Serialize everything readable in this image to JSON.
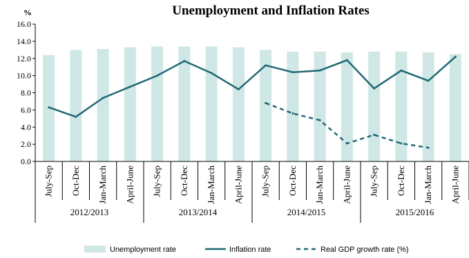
{
  "chart_data": {
    "type": "bar",
    "title": "Unemployment and Inflation Rates",
    "ylabel": "%",
    "ylim": [
      0,
      16
    ],
    "yticks": [
      "0.0",
      "2.0",
      "4.0",
      "6.0",
      "8.0",
      "10.0",
      "12.0",
      "14.0",
      "16.0"
    ],
    "categories": [
      "July-Sep",
      "Oct-Dec",
      "Jan-March",
      "April-June",
      "July-Sep",
      "Oct-Dec",
      "Jan-March",
      "April-June",
      "July-Sep",
      "Oct-Dec",
      "Jan-March",
      "April-June",
      "July-Sep",
      "Oct-Dec",
      "Jan-March",
      "April-June"
    ],
    "groups": [
      {
        "label": "2012/2013",
        "span": 4
      },
      {
        "label": "2013/2014",
        "span": 4
      },
      {
        "label": "2014/2015",
        "span": 4
      },
      {
        "label": "2015/2016",
        "span": 4
      }
    ],
    "series": [
      {
        "name": "Unemployment rate",
        "kind": "bar",
        "color": "#cfe8e6",
        "values": [
          12.4,
          13.0,
          13.1,
          13.3,
          13.4,
          13.4,
          13.4,
          13.3,
          13.0,
          12.8,
          12.8,
          12.7,
          12.8,
          12.8,
          12.7,
          12.5
        ]
      },
      {
        "name": "Inflation rate",
        "kind": "line",
        "color": "#1f6874",
        "values": [
          6.3,
          5.2,
          7.4,
          8.7,
          10.0,
          11.7,
          10.3,
          8.4,
          11.2,
          10.4,
          10.6,
          11.8,
          8.5,
          10.6,
          9.4,
          12.2
        ]
      },
      {
        "name": "Real GDP growth rate (%)",
        "kind": "dashed-line",
        "color": "#1f6874",
        "values": [
          null,
          null,
          null,
          null,
          null,
          null,
          null,
          null,
          6.8,
          5.6,
          4.8,
          2.1,
          3.1,
          2.1,
          1.6,
          null
        ]
      }
    ],
    "legend_position": "bottom",
    "grid": false
  }
}
